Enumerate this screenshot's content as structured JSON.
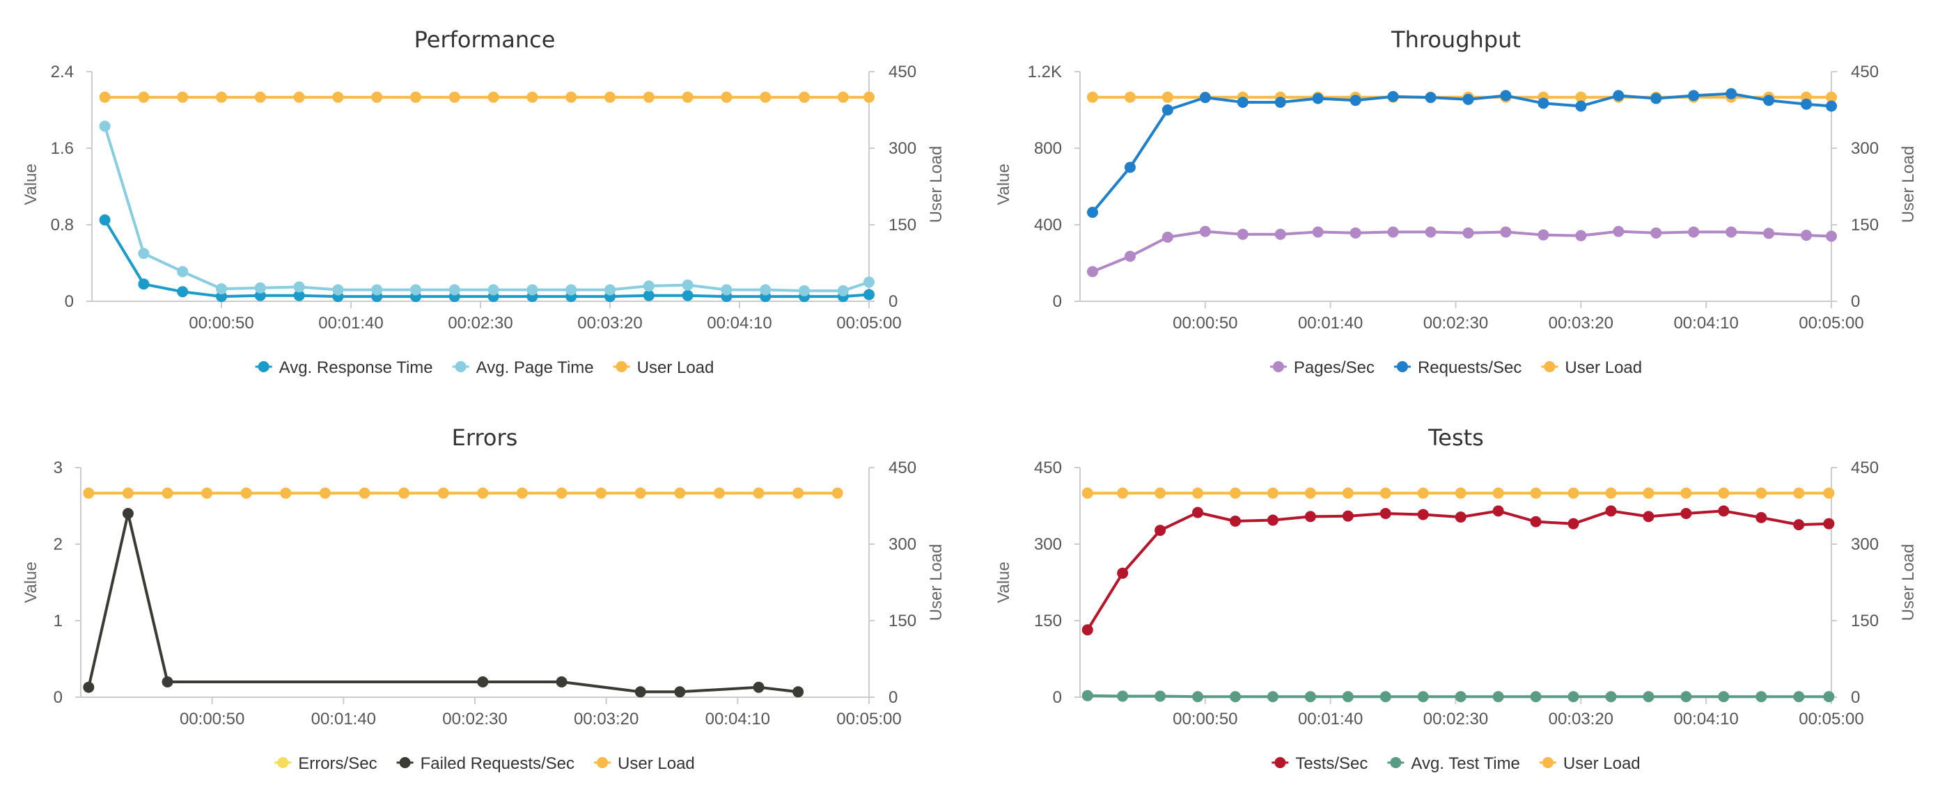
{
  "chart_data": [
    {
      "type": "line",
      "title": "Performance",
      "ylabel": "Value",
      "y2label": "User Load",
      "ylim": [
        0,
        2.4
      ],
      "y2lim": [
        0,
        450
      ],
      "yticks": [
        "0",
        "0.8",
        "1.6",
        "2.4"
      ],
      "y2ticks": [
        "0",
        "150",
        "300",
        "450"
      ],
      "xlim_seconds": [
        0,
        300
      ],
      "xticks": [
        "00:00:50",
        "00:01:40",
        "00:02:30",
        "00:03:20",
        "00:04:10",
        "00:05:00"
      ],
      "grid": false,
      "legend_position": "bottom",
      "series": [
        {
          "name": "Avg. Response Time",
          "color": "#1a9bc9",
          "axis": "left",
          "x": [
            5,
            20,
            35,
            50,
            65,
            80,
            95,
            110,
            125,
            140,
            155,
            170,
            185,
            200,
            215,
            230,
            245,
            260,
            275,
            290,
            300
          ],
          "values": [
            0.85,
            0.18,
            0.1,
            0.05,
            0.06,
            0.06,
            0.05,
            0.05,
            0.05,
            0.05,
            0.05,
            0.05,
            0.05,
            0.05,
            0.06,
            0.06,
            0.05,
            0.05,
            0.05,
            0.05,
            0.07
          ]
        },
        {
          "name": "Avg. Page Time",
          "color": "#89cde0",
          "axis": "left",
          "x": [
            5,
            20,
            35,
            50,
            65,
            80,
            95,
            110,
            125,
            140,
            155,
            170,
            185,
            200,
            215,
            230,
            245,
            260,
            275,
            290,
            300
          ],
          "values": [
            1.83,
            0.5,
            0.31,
            0.13,
            0.14,
            0.15,
            0.12,
            0.12,
            0.12,
            0.12,
            0.12,
            0.12,
            0.12,
            0.12,
            0.16,
            0.17,
            0.12,
            0.12,
            0.11,
            0.11,
            0.2
          ]
        },
        {
          "name": "User Load",
          "color": "#f8b946",
          "axis": "right",
          "x": [
            5,
            20,
            35,
            50,
            65,
            80,
            95,
            110,
            125,
            140,
            155,
            170,
            185,
            200,
            215,
            230,
            245,
            260,
            275,
            290,
            300
          ],
          "values": [
            400,
            400,
            400,
            400,
            400,
            400,
            400,
            400,
            400,
            400,
            400,
            400,
            400,
            400,
            400,
            400,
            400,
            400,
            400,
            400,
            400
          ]
        }
      ]
    },
    {
      "type": "line",
      "title": "Throughput",
      "ylabel": "Value",
      "y2label": "User Load",
      "ylim": [
        0,
        1200
      ],
      "y2lim": [
        0,
        450
      ],
      "yticks": [
        "0",
        "400",
        "800",
        "1.2K"
      ],
      "y2ticks": [
        "0",
        "150",
        "300",
        "450"
      ],
      "xlim_seconds": [
        0,
        300
      ],
      "xticks": [
        "00:00:50",
        "00:01:40",
        "00:02:30",
        "00:03:20",
        "00:04:10",
        "00:05:00"
      ],
      "grid": false,
      "legend_position": "bottom",
      "series": [
        {
          "name": "Pages/Sec",
          "color": "#b287c6",
          "axis": "left",
          "x": [
            5,
            20,
            35,
            50,
            65,
            80,
            95,
            110,
            125,
            140,
            155,
            170,
            185,
            200,
            215,
            230,
            245,
            260,
            275,
            290,
            300
          ],
          "values": [
            155,
            235,
            335,
            365,
            350,
            350,
            362,
            357,
            362,
            362,
            357,
            362,
            347,
            343,
            365,
            357,
            362,
            362,
            355,
            345,
            340
          ]
        },
        {
          "name": "Requests/Sec",
          "color": "#1f7fcb",
          "axis": "left",
          "x": [
            5,
            20,
            35,
            50,
            65,
            80,
            95,
            110,
            125,
            140,
            155,
            170,
            185,
            200,
            215,
            230,
            245,
            260,
            275,
            290,
            300
          ],
          "values": [
            465,
            700,
            1000,
            1065,
            1040,
            1040,
            1060,
            1050,
            1070,
            1065,
            1055,
            1075,
            1035,
            1020,
            1075,
            1060,
            1075,
            1085,
            1050,
            1030,
            1020
          ]
        },
        {
          "name": "User Load",
          "color": "#f8b946",
          "axis": "right",
          "x": [
            5,
            20,
            35,
            50,
            65,
            80,
            95,
            110,
            125,
            140,
            155,
            170,
            185,
            200,
            215,
            230,
            245,
            260,
            275,
            290,
            300
          ],
          "values": [
            400,
            400,
            400,
            400,
            400,
            400,
            400,
            400,
            400,
            400,
            400,
            400,
            400,
            400,
            400,
            400,
            400,
            400,
            400,
            400,
            400
          ]
        }
      ]
    },
    {
      "type": "line",
      "title": "Errors",
      "ylabel": "Value",
      "y2label": "User Load",
      "ylim": [
        0,
        3
      ],
      "y2lim": [
        0,
        450
      ],
      "yticks": [
        "0",
        "1",
        "2",
        "3"
      ],
      "y2ticks": [
        "0",
        "150",
        "300",
        "450"
      ],
      "xlim_seconds": [
        0,
        300
      ],
      "xticks": [
        "00:00:50",
        "00:01:40",
        "00:02:30",
        "00:03:20",
        "00:04:10",
        "00:05:00"
      ],
      "grid": false,
      "legend_position": "bottom",
      "series": [
        {
          "name": "Errors/Sec",
          "color": "#f7dc5a",
          "axis": "left",
          "x": [],
          "values": []
        },
        {
          "name": "Failed Requests/Sec",
          "color": "#3b3b36",
          "axis": "left",
          "x": [
            3,
            18,
            33,
            153,
            183,
            213,
            228,
            258,
            273
          ],
          "values": [
            0.13,
            2.4,
            0.2,
            0.2,
            0.2,
            0.07,
            0.07,
            0.13,
            0.07
          ]
        },
        {
          "name": "User Load",
          "color": "#f8b946",
          "axis": "right",
          "x": [
            3,
            18,
            33,
            48,
            63,
            78,
            93,
            108,
            123,
            138,
            153,
            168,
            183,
            198,
            213,
            228,
            243,
            258,
            273,
            288
          ],
          "values": [
            400,
            400,
            400,
            400,
            400,
            400,
            400,
            400,
            400,
            400,
            400,
            400,
            400,
            400,
            400,
            400,
            400,
            400,
            400,
            400
          ]
        }
      ]
    },
    {
      "type": "line",
      "title": "Tests",
      "ylabel": "Value",
      "y2label": "User Load",
      "ylim": [
        0,
        450
      ],
      "y2lim": [
        0,
        450
      ],
      "yticks": [
        "0",
        "150",
        "300",
        "450"
      ],
      "y2ticks": [
        "0",
        "150",
        "300",
        "450"
      ],
      "xlim_seconds": [
        0,
        300
      ],
      "xticks": [
        "00:00:50",
        "00:01:40",
        "00:02:30",
        "00:03:20",
        "00:04:10",
        "00:05:00"
      ],
      "grid": false,
      "legend_position": "bottom",
      "series": [
        {
          "name": "Tests/Sec",
          "color": "#b5162b",
          "axis": "left",
          "x": [
            3,
            17,
            32,
            47,
            62,
            77,
            92,
            107,
            122,
            137,
            152,
            167,
            182,
            197,
            212,
            227,
            242,
            257,
            272,
            287,
            299
          ],
          "values": [
            132,
            243,
            327,
            362,
            345,
            347,
            354,
            355,
            360,
            358,
            353,
            365,
            344,
            340,
            365,
            354,
            360,
            365,
            352,
            338,
            340
          ]
        },
        {
          "name": "Avg. Test Time",
          "color": "#5a9b83",
          "axis": "left",
          "x": [
            3,
            17,
            32,
            47,
            62,
            77,
            92,
            107,
            122,
            137,
            152,
            167,
            182,
            197,
            212,
            227,
            242,
            257,
            272,
            287,
            299
          ],
          "values": [
            3,
            2,
            2,
            1,
            1,
            1,
            1,
            1,
            1,
            1,
            1,
            1,
            1,
            1,
            1,
            1,
            1,
            1,
            1,
            1,
            1
          ]
        },
        {
          "name": "User Load",
          "color": "#f8b946",
          "axis": "right",
          "x": [
            3,
            17,
            32,
            47,
            62,
            77,
            92,
            107,
            122,
            137,
            152,
            167,
            182,
            197,
            212,
            227,
            242,
            257,
            272,
            287,
            299
          ],
          "values": [
            400,
            400,
            400,
            400,
            400,
            400,
            400,
            400,
            400,
            400,
            400,
            400,
            400,
            400,
            400,
            400,
            400,
            400,
            400,
            400,
            400
          ]
        }
      ]
    }
  ]
}
